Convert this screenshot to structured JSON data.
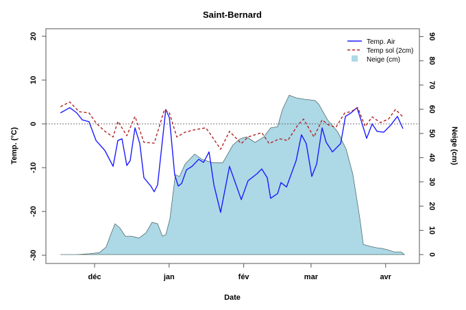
{
  "chart_data": {
    "type": "line",
    "title": "Saint-Bernard",
    "xlabel": "Date",
    "ylabel": "Temp. (°C)",
    "ylabel_right": "Neige (cm)",
    "ylim": [
      -30,
      20
    ],
    "ylim_right": [
      0,
      90
    ],
    "yticks": [
      -30,
      -20,
      -10,
      0,
      10,
      20
    ],
    "yticks_right": [
      0,
      10,
      20,
      30,
      40,
      50,
      60,
      70,
      80,
      90
    ],
    "x_unit": "days since 1 Dec",
    "xticks": [
      {
        "label": "déc",
        "day": 0
      },
      {
        "label": "jan",
        "day": 31
      },
      {
        "label": "fév",
        "day": 62
      },
      {
        "label": "mar",
        "day": 90
      },
      {
        "label": "avr",
        "day": 121
      }
    ],
    "reference_line": 0,
    "legend_position": "top-right",
    "colors": {
      "air": "#1a1aff",
      "soil": "#b22222",
      "snow": "#add8e6",
      "snow_edge": "#4f6b6b"
    },
    "series": [
      {
        "name": "Temp. Air",
        "axis": "left",
        "style": "solid",
        "points": [
          [
            -14.2,
            2.5
          ],
          [
            -10.3,
            3.7
          ],
          [
            -7.4,
            2.5
          ],
          [
            -5.1,
            0.9
          ],
          [
            -2.3,
            0.5
          ],
          [
            0.6,
            -3.8
          ],
          [
            4.3,
            -6.1
          ],
          [
            7.7,
            -9.7
          ],
          [
            9.7,
            -3.8
          ],
          [
            11.4,
            -3.4
          ],
          [
            13.4,
            -9.5
          ],
          [
            14.8,
            -8.4
          ],
          [
            16.8,
            -0.9
          ],
          [
            18.8,
            -4.5
          ],
          [
            20.5,
            -12.3
          ],
          [
            23.4,
            -14.2
          ],
          [
            24.8,
            -15.5
          ],
          [
            26.2,
            -13.9
          ],
          [
            29.6,
            3.3
          ],
          [
            31.1,
            1.4
          ],
          [
            33.3,
            -11.6
          ],
          [
            34.8,
            -14.2
          ],
          [
            36.2,
            -13.6
          ],
          [
            38.2,
            -10.5
          ],
          [
            40.5,
            -9.7
          ],
          [
            43.3,
            -8.1
          ],
          [
            45.3,
            -8.8
          ],
          [
            47.6,
            -6.4
          ],
          [
            49.6,
            -13.9
          ],
          [
            52.4,
            -20.2
          ],
          [
            56.1,
            -9.7
          ],
          [
            61,
            -17.3
          ],
          [
            63.8,
            -13
          ],
          [
            67.5,
            -11.4
          ],
          [
            69.5,
            -10.3
          ],
          [
            71.8,
            -12.3
          ],
          [
            73.2,
            -17
          ],
          [
            76.1,
            -15.9
          ],
          [
            77.5,
            -13.4
          ],
          [
            79.8,
            -14.4
          ],
          [
            83.8,
            -8.4
          ],
          [
            86,
            -2.5
          ],
          [
            88,
            -4.5
          ],
          [
            90.3,
            -12
          ],
          [
            92.3,
            -9.2
          ],
          [
            94.6,
            -0.9
          ],
          [
            96.3,
            -4.2
          ],
          [
            98.9,
            -6.4
          ],
          [
            102.3,
            -4.5
          ],
          [
            104.3,
            1.7
          ],
          [
            106.6,
            2.5
          ],
          [
            109.1,
            3.7
          ],
          [
            110.8,
            0.8
          ],
          [
            113.1,
            -3.3
          ],
          [
            115.4,
            0
          ],
          [
            117.4,
            -1.7
          ],
          [
            120.2,
            -1.9
          ],
          [
            123.1,
            -0.3
          ],
          [
            125.9,
            1.7
          ],
          [
            128.2,
            -1.1
          ]
        ]
      },
      {
        "name": "Temp sol (2cm)",
        "axis": "left",
        "style": "dashed",
        "points": [
          [
            -14.2,
            3.9
          ],
          [
            -10.3,
            5.0
          ],
          [
            -6.5,
            2.8
          ],
          [
            -2.3,
            2.5
          ],
          [
            0.6,
            0.2
          ],
          [
            4.3,
            -1.7
          ],
          [
            7.7,
            -3.0
          ],
          [
            9.7,
            0.6
          ],
          [
            13.4,
            -2.7
          ],
          [
            16.8,
            1.7
          ],
          [
            20.5,
            -4.2
          ],
          [
            24.8,
            -4.4
          ],
          [
            29.1,
            3.3
          ],
          [
            31.1,
            2.5
          ],
          [
            34.2,
            -3.0
          ],
          [
            37.6,
            -1.9
          ],
          [
            41.9,
            -1.3
          ],
          [
            46.2,
            -0.9
          ],
          [
            47.6,
            -1.9
          ],
          [
            52.4,
            -5.8
          ],
          [
            56.1,
            -1.7
          ],
          [
            61,
            -4.5
          ],
          [
            63.8,
            -3.0
          ],
          [
            69.5,
            -2.0
          ],
          [
            72.6,
            -4.5
          ],
          [
            76.9,
            -3.4
          ],
          [
            80.3,
            -3.8
          ],
          [
            84.6,
            -0.2
          ],
          [
            86.9,
            1.1
          ],
          [
            91.2,
            -3.0
          ],
          [
            94.6,
            0.9
          ],
          [
            97.4,
            -0.3
          ],
          [
            100.3,
            -0.8
          ],
          [
            104,
            2.5
          ],
          [
            106.6,
            2.8
          ],
          [
            109.4,
            3.7
          ],
          [
            112.5,
            -0.6
          ],
          [
            115.4,
            1.6
          ],
          [
            118.8,
            0.3
          ],
          [
            122.2,
            1.1
          ],
          [
            125.1,
            3.3
          ],
          [
            128.2,
            1.6
          ]
        ]
      },
      {
        "name": "Neige (cm)",
        "axis": "right",
        "style": "area",
        "points": [
          [
            -14.2,
            0
          ],
          [
            -7.4,
            0
          ],
          [
            -2.3,
            0.3
          ],
          [
            2,
            0.8
          ],
          [
            4.8,
            3.1
          ],
          [
            6.8,
            8.5
          ],
          [
            8.5,
            12.7
          ],
          [
            10.5,
            11
          ],
          [
            12.8,
            7.6
          ],
          [
            15.4,
            7.6
          ],
          [
            18.5,
            6.8
          ],
          [
            21.4,
            9
          ],
          [
            23.9,
            13.3
          ],
          [
            26.2,
            12.7
          ],
          [
            28.2,
            7.6
          ],
          [
            29.6,
            8.2
          ],
          [
            31.3,
            14.7
          ],
          [
            33.6,
            33
          ],
          [
            35.3,
            32.2
          ],
          [
            37.6,
            37.3
          ],
          [
            41.6,
            41.5
          ],
          [
            44.7,
            39.3
          ],
          [
            49,
            37.9
          ],
          [
            53.3,
            37.9
          ],
          [
            57.5,
            45.2
          ],
          [
            60.4,
            47.7
          ],
          [
            63.2,
            48.6
          ],
          [
            66.7,
            46.3
          ],
          [
            70.4,
            48.6
          ],
          [
            73.2,
            52.3
          ],
          [
            76.1,
            52.8
          ],
          [
            78.1,
            59.9
          ],
          [
            80.9,
            65.8
          ],
          [
            83.8,
            64.7
          ],
          [
            87.5,
            64.1
          ],
          [
            91.7,
            63.6
          ],
          [
            93.2,
            62.1
          ],
          [
            96.9,
            55.6
          ],
          [
            101.1,
            50.6
          ],
          [
            104.6,
            43.5
          ],
          [
            107.4,
            33
          ],
          [
            110.3,
            14.7
          ],
          [
            111.7,
            4.2
          ],
          [
            114.5,
            3.4
          ],
          [
            117.4,
            2.8
          ],
          [
            119.7,
            2.5
          ],
          [
            121.7,
            2.0
          ],
          [
            124.5,
            1.1
          ],
          [
            127.4,
            1.1
          ],
          [
            128.8,
            0
          ]
        ]
      }
    ]
  }
}
